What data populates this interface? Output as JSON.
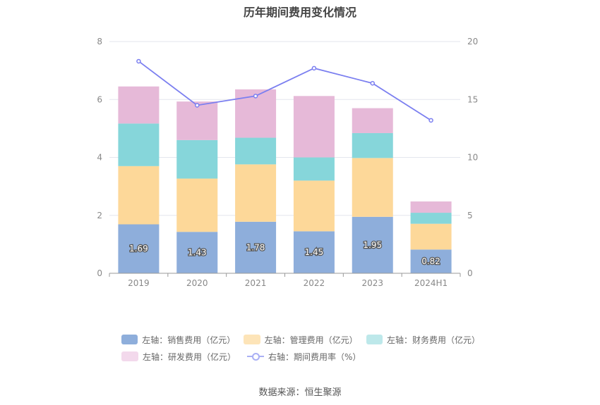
{
  "chart_data": {
    "type": "bar",
    "title": "历年期间费用变化情况",
    "categories": [
      "2019",
      "2020",
      "2021",
      "2022",
      "2023",
      "2024H1"
    ],
    "left_axis": {
      "ylim": [
        0,
        8
      ],
      "ticks": [
        "0",
        "2",
        "4",
        "6",
        "8"
      ]
    },
    "right_axis": {
      "ylim": [
        0,
        20
      ],
      "ticks": [
        "0",
        "5",
        "10",
        "15",
        "20"
      ]
    },
    "series": [
      {
        "name": "左轴：销售费用（亿元）",
        "type": "bar",
        "axis": "left",
        "color": "#8eaedb",
        "values": [
          1.69,
          1.43,
          1.78,
          1.45,
          1.95,
          0.82
        ],
        "labels": [
          "1.69",
          "1.43",
          "1.78",
          "1.45",
          "1.95",
          "0.82"
        ]
      },
      {
        "name": "左轴：管理费用（亿元）",
        "type": "bar",
        "axis": "left",
        "color": "#fdd899",
        "values": [
          2.01,
          1.84,
          1.98,
          1.75,
          2.03,
          0.89
        ]
      },
      {
        "name": "左轴：财务费用（亿元）",
        "type": "bar",
        "axis": "left",
        "color": "#86d6da",
        "values": [
          1.47,
          1.33,
          0.92,
          0.8,
          0.86,
          0.38
        ]
      },
      {
        "name": "左轴：研发费用（亿元）",
        "type": "bar",
        "axis": "left",
        "color": "#e6b9d8",
        "values": [
          1.28,
          1.33,
          1.67,
          2.12,
          0.86,
          0.39
        ]
      },
      {
        "name": "右轴：期间费用率（%）",
        "type": "line",
        "axis": "right",
        "color": "#7b7ff0",
        "values": [
          18.3,
          14.5,
          15.3,
          17.7,
          16.4,
          13.2
        ]
      }
    ]
  },
  "source": "数据来源：恒生聚源"
}
